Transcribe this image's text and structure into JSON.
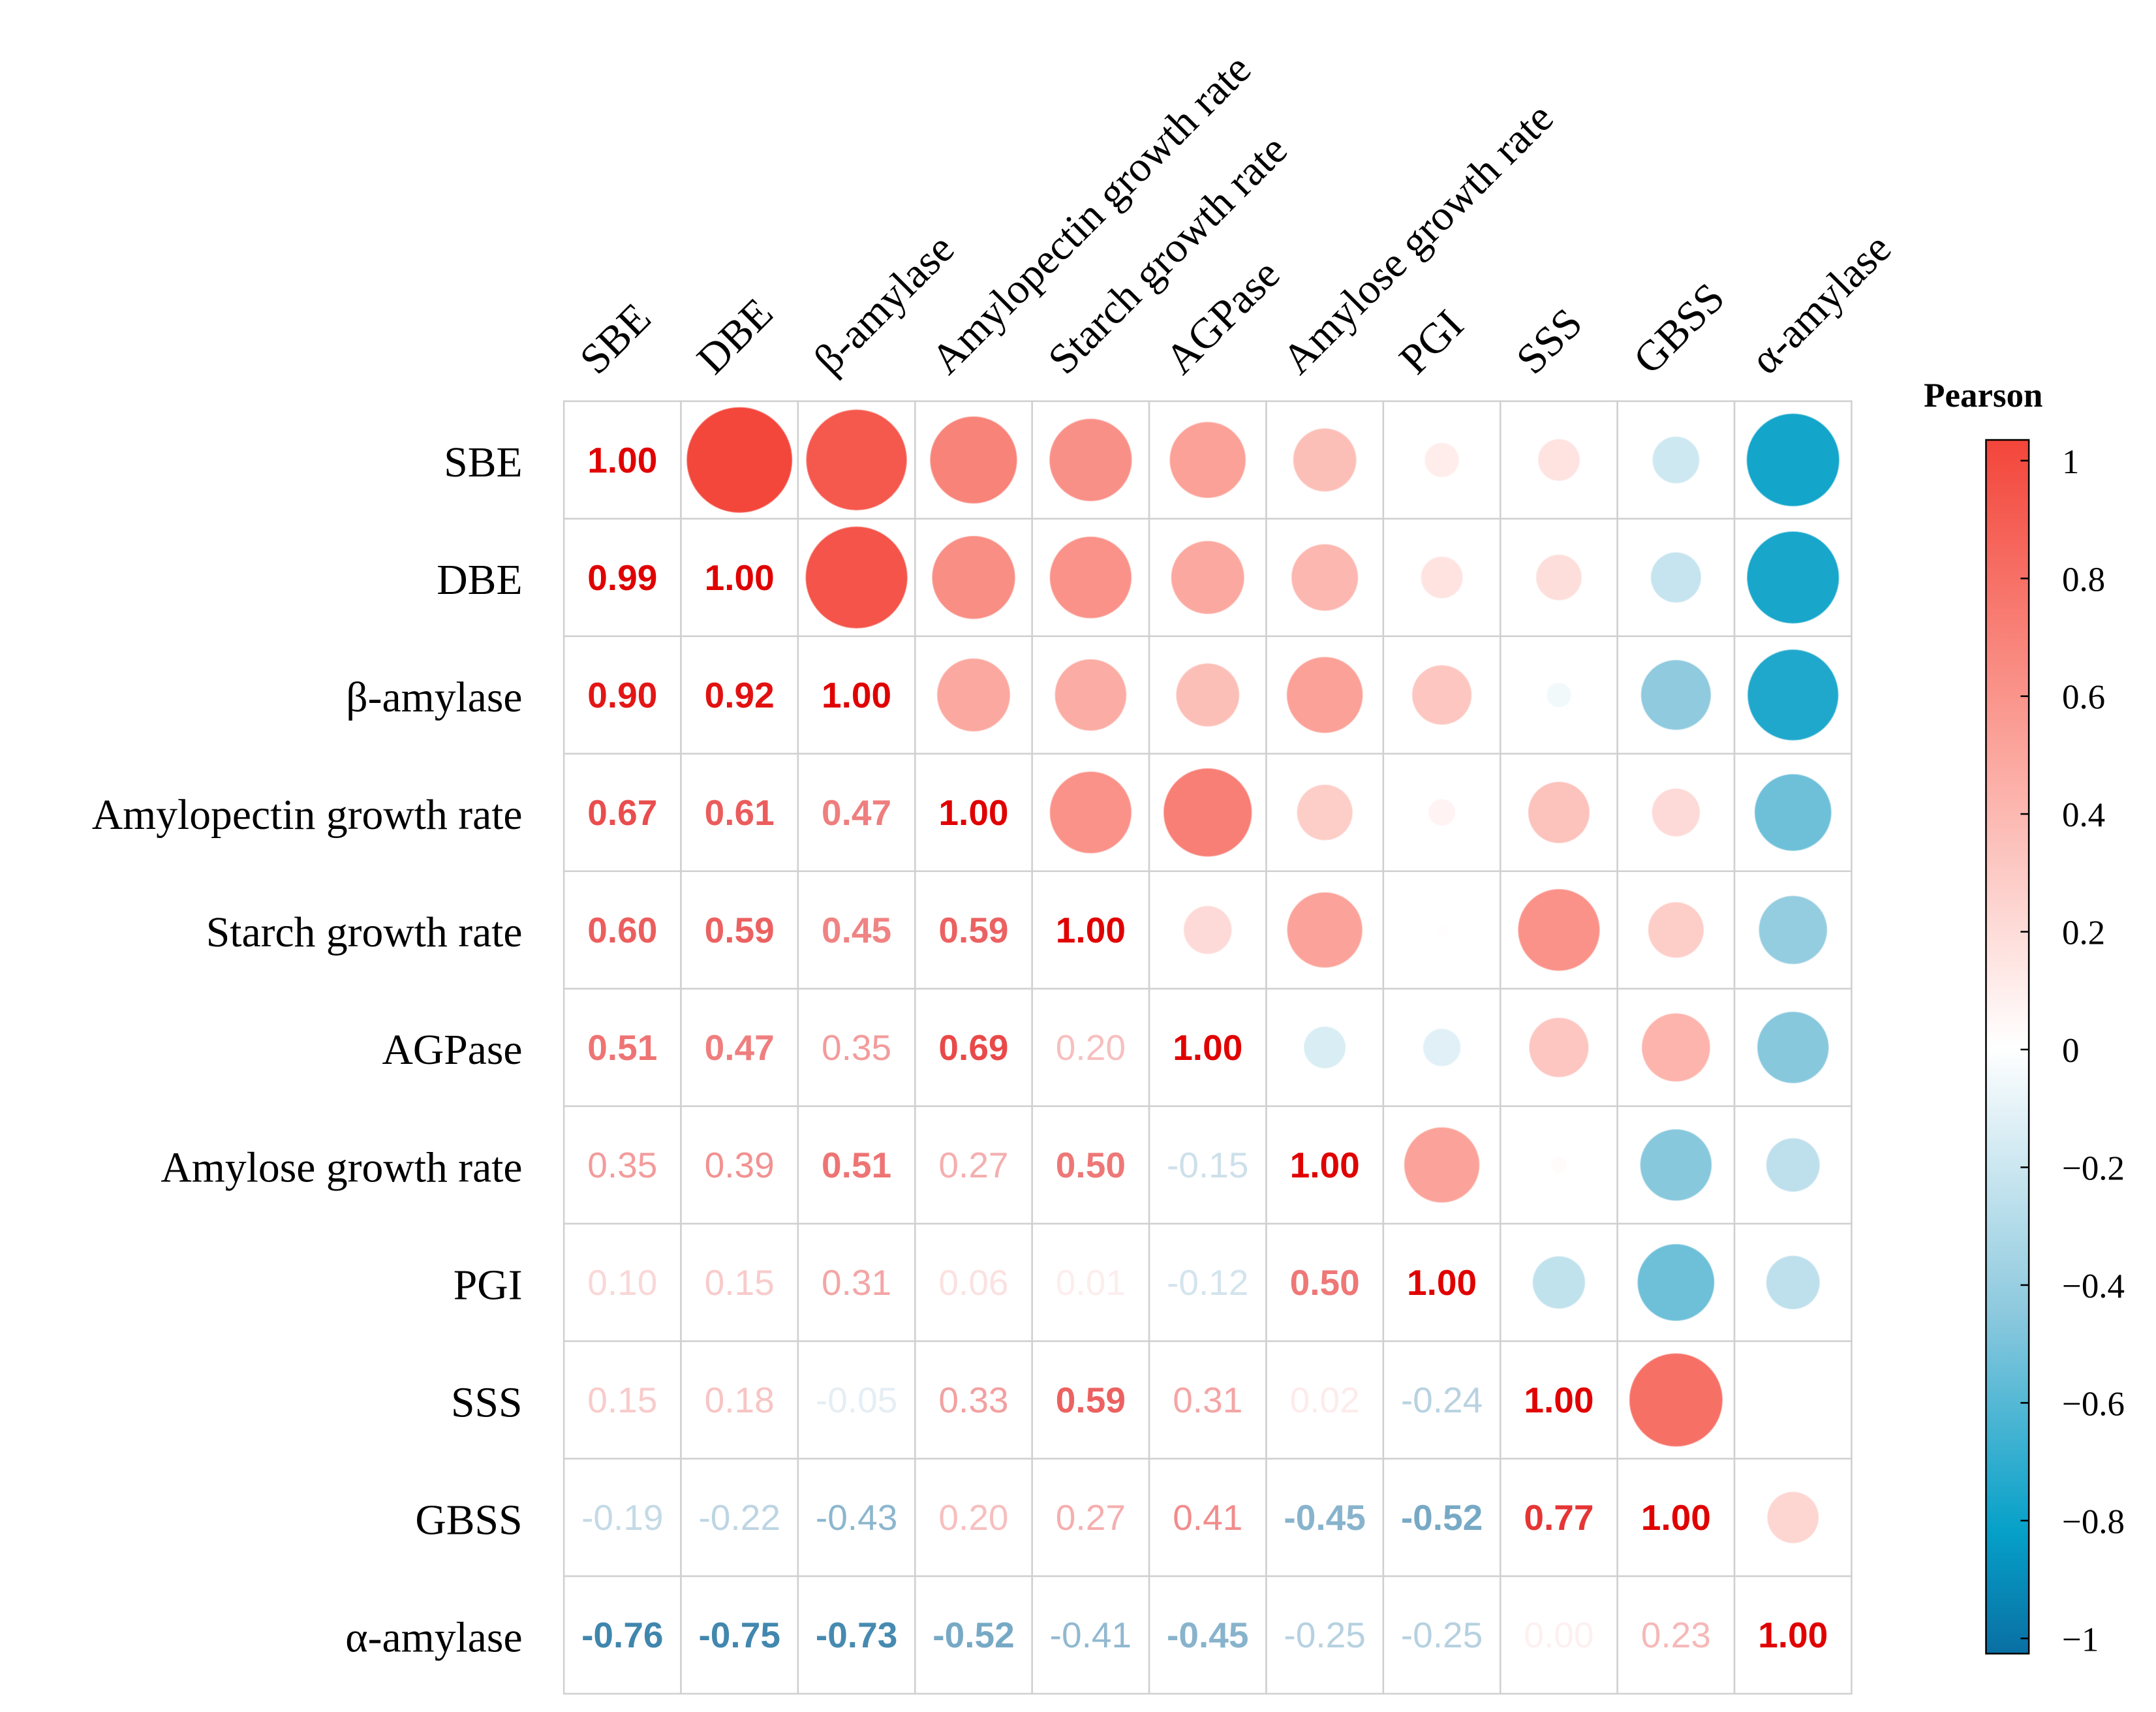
{
  "chart_data": {
    "type": "heatmap",
    "subtype": "correlation-matrix (lower: numbers, upper: circles)",
    "variables": [
      "SBE",
      "DBE",
      "β-amylase",
      "Amylopectin growth rate",
      "Starch growth rate",
      "AGPase",
      "Amylose growth rate",
      "PGI",
      "SSS",
      "GBSS",
      "α-amylase"
    ],
    "lower_triangle": [
      [
        1.0
      ],
      [
        0.99,
        1.0
      ],
      [
        0.9,
        0.92,
        1.0
      ],
      [
        0.67,
        0.61,
        0.47,
        1.0
      ],
      [
        0.6,
        0.59,
        0.45,
        0.59,
        1.0
      ],
      [
        0.51,
        0.47,
        0.35,
        0.69,
        0.2,
        1.0
      ],
      [
        0.35,
        0.39,
        0.51,
        0.27,
        0.5,
        -0.15,
        1.0
      ],
      [
        0.1,
        0.15,
        0.31,
        0.06,
        0.01,
        -0.12,
        0.5,
        1.0
      ],
      [
        0.15,
        0.18,
        -0.05,
        0.33,
        0.59,
        0.31,
        0.02,
        -0.24,
        1.0
      ],
      [
        -0.19,
        -0.22,
        -0.43,
        0.2,
        0.27,
        0.41,
        -0.45,
        -0.52,
        0.77,
        1.0
      ],
      [
        -0.76,
        -0.75,
        -0.73,
        -0.52,
        -0.41,
        -0.45,
        -0.25,
        -0.25,
        0.0,
        0.23,
        1.0
      ]
    ],
    "legend": {
      "title": "Pearson",
      "range": [
        -1,
        1
      ],
      "ticks": [
        "1",
        "0.8",
        "0.6",
        "0.4",
        "0.2",
        "0",
        "−0.2",
        "−0.4",
        "−0.6",
        "−0.8",
        "−1"
      ],
      "placement": "right"
    },
    "colors": {
      "negative": "#0a6fa3",
      "neg_mid": "#05a0c8",
      "zero": "#ffffff",
      "positive": "#f3453a"
    }
  }
}
